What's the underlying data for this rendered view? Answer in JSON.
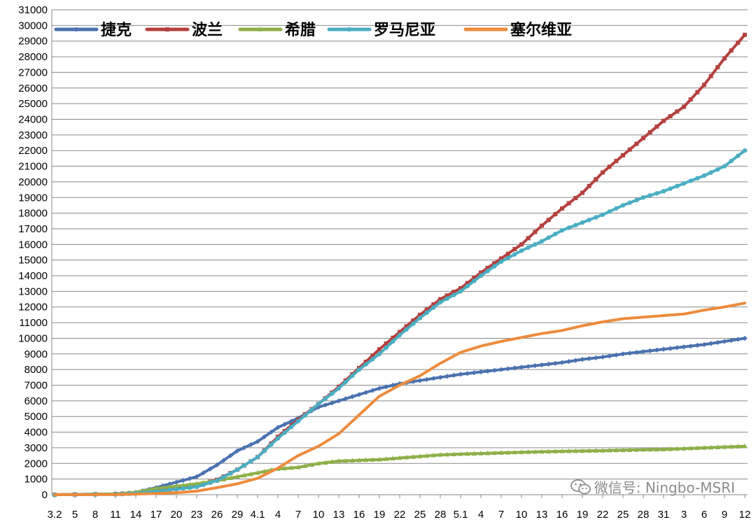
{
  "chart_data": {
    "type": "line",
    "title": "",
    "xlabel": "",
    "ylabel": "",
    "ylim": [
      0,
      31000
    ],
    "ytick_step": 1000,
    "grid": "horizontal",
    "legend_position": "top-left",
    "x_tick_labels": [
      "3.2",
      "5",
      "8",
      "11",
      "14",
      "17",
      "20",
      "23",
      "26",
      "29",
      "4.1",
      "4",
      "7",
      "10",
      "13",
      "16",
      "19",
      "22",
      "25",
      "28",
      "5.1",
      "4",
      "7",
      "10",
      "13",
      "16",
      "19",
      "22",
      "25",
      "28",
      "31",
      "3",
      "6",
      "9",
      "12"
    ],
    "x_tick_days": [
      0,
      3,
      6,
      9,
      12,
      15,
      18,
      21,
      24,
      27,
      30,
      33,
      36,
      39,
      42,
      45,
      48,
      51,
      54,
      57,
      60,
      63,
      66,
      69,
      72,
      75,
      78,
      81,
      84,
      87,
      90,
      93,
      96,
      99,
      102
    ],
    "x_last_day": 102,
    "series": [
      {
        "name": "捷克",
        "color": "#4a72b0",
        "marker": "diamond",
        "points": [
          [
            0,
            0
          ],
          [
            9,
            60
          ],
          [
            12,
            150
          ],
          [
            15,
            450
          ],
          [
            18,
            800
          ],
          [
            21,
            1150
          ],
          [
            24,
            1900
          ],
          [
            27,
            2800
          ],
          [
            30,
            3400
          ],
          [
            33,
            4300
          ],
          [
            36,
            4900
          ],
          [
            39,
            5600
          ],
          [
            42,
            6000
          ],
          [
            45,
            6400
          ],
          [
            48,
            6800
          ],
          [
            51,
            7100
          ],
          [
            54,
            7300
          ],
          [
            57,
            7500
          ],
          [
            60,
            7700
          ],
          [
            63,
            7850
          ],
          [
            66,
            8000
          ],
          [
            69,
            8150
          ],
          [
            72,
            8300
          ],
          [
            75,
            8450
          ],
          [
            78,
            8650
          ],
          [
            81,
            8800
          ],
          [
            84,
            9000
          ],
          [
            87,
            9150
          ],
          [
            90,
            9300
          ],
          [
            93,
            9450
          ],
          [
            96,
            9600
          ],
          [
            99,
            9800
          ],
          [
            102,
            10000
          ]
        ]
      },
      {
        "name": "波兰",
        "color": "#b5413e",
        "marker": "square",
        "points": [
          [
            0,
            0
          ],
          [
            9,
            40
          ],
          [
            12,
            100
          ],
          [
            15,
            230
          ],
          [
            18,
            420
          ],
          [
            21,
            600
          ],
          [
            24,
            950
          ],
          [
            27,
            1600
          ],
          [
            30,
            2400
          ],
          [
            33,
            3700
          ],
          [
            36,
            4800
          ],
          [
            39,
            5800
          ],
          [
            42,
            6900
          ],
          [
            45,
            8100
          ],
          [
            48,
            9300
          ],
          [
            51,
            10400
          ],
          [
            54,
            11500
          ],
          [
            57,
            12500
          ],
          [
            60,
            13200
          ],
          [
            63,
            14200
          ],
          [
            66,
            15100
          ],
          [
            69,
            16000
          ],
          [
            72,
            17200
          ],
          [
            75,
            18300
          ],
          [
            78,
            19300
          ],
          [
            81,
            20600
          ],
          [
            84,
            21700
          ],
          [
            87,
            22800
          ],
          [
            90,
            23900
          ],
          [
            93,
            24800
          ],
          [
            96,
            26200
          ],
          [
            99,
            27900
          ],
          [
            102,
            29400
          ]
        ]
      },
      {
        "name": "希腊",
        "color": "#8db048",
        "marker": "triangle",
        "points": [
          [
            0,
            0
          ],
          [
            9,
            50
          ],
          [
            12,
            150
          ],
          [
            15,
            400
          ],
          [
            18,
            550
          ],
          [
            21,
            700
          ],
          [
            24,
            900
          ],
          [
            27,
            1150
          ],
          [
            30,
            1400
          ],
          [
            33,
            1650
          ],
          [
            36,
            1750
          ],
          [
            39,
            2000
          ],
          [
            42,
            2150
          ],
          [
            45,
            2200
          ],
          [
            48,
            2250
          ],
          [
            51,
            2350
          ],
          [
            54,
            2450
          ],
          [
            57,
            2550
          ],
          [
            60,
            2600
          ],
          [
            63,
            2640
          ],
          [
            66,
            2680
          ],
          [
            69,
            2720
          ],
          [
            72,
            2750
          ],
          [
            75,
            2780
          ],
          [
            78,
            2800
          ],
          [
            81,
            2820
          ],
          [
            84,
            2850
          ],
          [
            87,
            2880
          ],
          [
            90,
            2900
          ],
          [
            93,
            2950
          ],
          [
            96,
            3000
          ],
          [
            99,
            3050
          ],
          [
            102,
            3100
          ]
        ]
      },
      {
        "name": "罗马尼亚",
        "color": "#4aaec3",
        "marker": "circle",
        "points": [
          [
            0,
            0
          ],
          [
            9,
            20
          ],
          [
            12,
            80
          ],
          [
            15,
            200
          ],
          [
            18,
            350
          ],
          [
            21,
            500
          ],
          [
            24,
            900
          ],
          [
            27,
            1600
          ],
          [
            30,
            2400
          ],
          [
            33,
            3600
          ],
          [
            36,
            4700
          ],
          [
            39,
            5800
          ],
          [
            42,
            6800
          ],
          [
            45,
            8000
          ],
          [
            48,
            9000
          ],
          [
            51,
            10200
          ],
          [
            54,
            11300
          ],
          [
            57,
            12300
          ],
          [
            60,
            13000
          ],
          [
            63,
            14000
          ],
          [
            66,
            14900
          ],
          [
            69,
            15600
          ],
          [
            72,
            16200
          ],
          [
            75,
            16900
          ],
          [
            78,
            17400
          ],
          [
            81,
            17900
          ],
          [
            84,
            18500
          ],
          [
            87,
            19000
          ],
          [
            90,
            19400
          ],
          [
            93,
            19900
          ],
          [
            96,
            20400
          ],
          [
            99,
            21000
          ],
          [
            102,
            22000
          ]
        ]
      },
      {
        "name": "塞尔维亚",
        "color": "#ed8b3c",
        "marker": "none",
        "points": [
          [
            0,
            0
          ],
          [
            9,
            15
          ],
          [
            12,
            40
          ],
          [
            15,
            80
          ],
          [
            18,
            130
          ],
          [
            21,
            230
          ],
          [
            24,
            450
          ],
          [
            27,
            700
          ],
          [
            30,
            1050
          ],
          [
            33,
            1700
          ],
          [
            36,
            2500
          ],
          [
            39,
            3100
          ],
          [
            42,
            3900
          ],
          [
            45,
            5100
          ],
          [
            48,
            6300
          ],
          [
            51,
            7000
          ],
          [
            54,
            7600
          ],
          [
            57,
            8400
          ],
          [
            60,
            9100
          ],
          [
            63,
            9500
          ],
          [
            66,
            9800
          ],
          [
            69,
            10050
          ],
          [
            72,
            10300
          ],
          [
            75,
            10500
          ],
          [
            78,
            10800
          ],
          [
            81,
            11050
          ],
          [
            84,
            11250
          ],
          [
            87,
            11350
          ],
          [
            90,
            11450
          ],
          [
            93,
            11550
          ],
          [
            96,
            11800
          ],
          [
            99,
            12000
          ],
          [
            102,
            12250
          ]
        ]
      }
    ]
  },
  "watermark": "微信号: Ningbo-MSRI",
  "watermark_icon": "wechat-icon"
}
